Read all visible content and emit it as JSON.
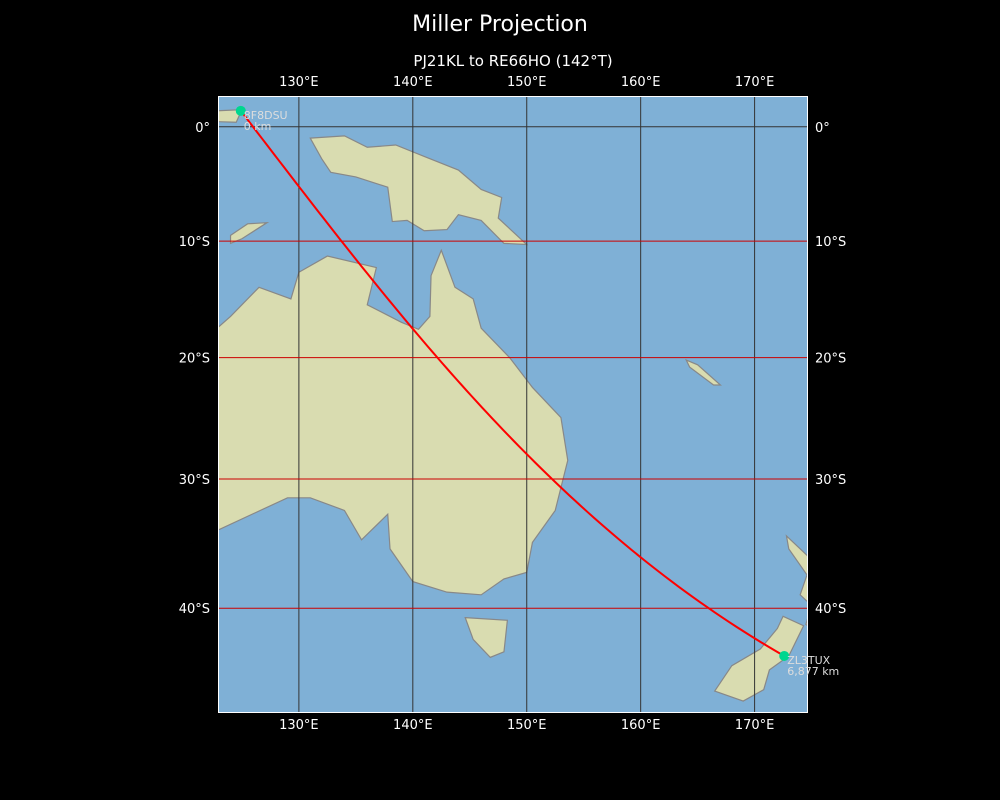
{
  "title": "Miller Projection",
  "subtitle": "PJ21KL to RE66HO (142°T)",
  "map": {
    "projection": "Miller",
    "extent": {
      "lon": [
        122.9,
        174.6
      ],
      "lat": [
        -48.5,
        2.7
      ]
    },
    "lon_ticks": [
      {
        "value": 130,
        "label": "130°E"
      },
      {
        "value": 140,
        "label": "140°E"
      },
      {
        "value": 150,
        "label": "150°E"
      },
      {
        "value": 160,
        "label": "160°E"
      },
      {
        "value": 170,
        "label": "170°E"
      }
    ],
    "lat_ticks": [
      {
        "value": 0,
        "label": "0°"
      },
      {
        "value": -10,
        "label": "10°S"
      },
      {
        "value": -20,
        "label": "20°S"
      },
      {
        "value": -30,
        "label": "30°S"
      },
      {
        "value": -40,
        "label": "40°S"
      }
    ],
    "colors": {
      "ocean": "#7fb0d6",
      "land": "#d9dcb0",
      "coast": "#888888",
      "grid_lon": "#333333",
      "grid_lat": "#cc0000",
      "path": "#ff0000",
      "marker": "#00d68f"
    },
    "start": {
      "call": "8F8DSU",
      "distance": "0 km",
      "lon": 124.9,
      "lat": 1.4
    },
    "end": {
      "call": "ZL3TUX",
      "distance": "6,877 km",
      "lon": 172.6,
      "lat": -43.5
    }
  }
}
